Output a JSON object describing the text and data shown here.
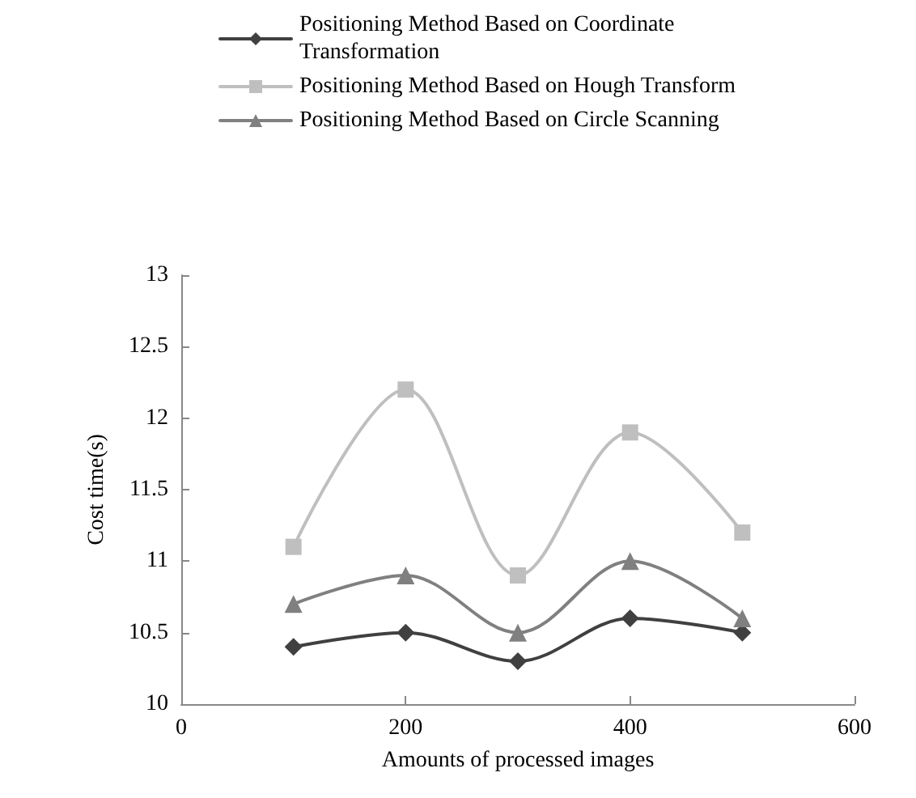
{
  "chart_data": {
    "type": "line",
    "xlabel": "Amounts of processed images",
    "ylabel": "Cost time(s)",
    "x": [
      100,
      200,
      300,
      400,
      500
    ],
    "series": [
      {
        "name": "Positioning Method Based on Coordinate Transformation",
        "color": "#404040",
        "marker": "diamond",
        "values": [
          10.4,
          10.5,
          10.3,
          10.6,
          10.5
        ]
      },
      {
        "name": "Positioning Method Based on Hough Transform",
        "color": "#bfbfbf",
        "marker": "square",
        "values": [
          11.1,
          12.2,
          10.9,
          11.9,
          11.2
        ]
      },
      {
        "name": "Positioning Method Based on Circle Scanning",
        "color": "#808080",
        "marker": "triangle",
        "values": [
          10.7,
          10.9,
          10.5,
          11.0,
          10.6
        ]
      }
    ],
    "xlim": [
      0,
      600
    ],
    "xticks": [
      0,
      200,
      400,
      600
    ],
    "ylim": [
      10,
      13
    ],
    "yticks": [
      10,
      10.5,
      11,
      11.5,
      12,
      12.5,
      13
    ],
    "grid": false,
    "legend": "top",
    "line_style": "solid"
  }
}
